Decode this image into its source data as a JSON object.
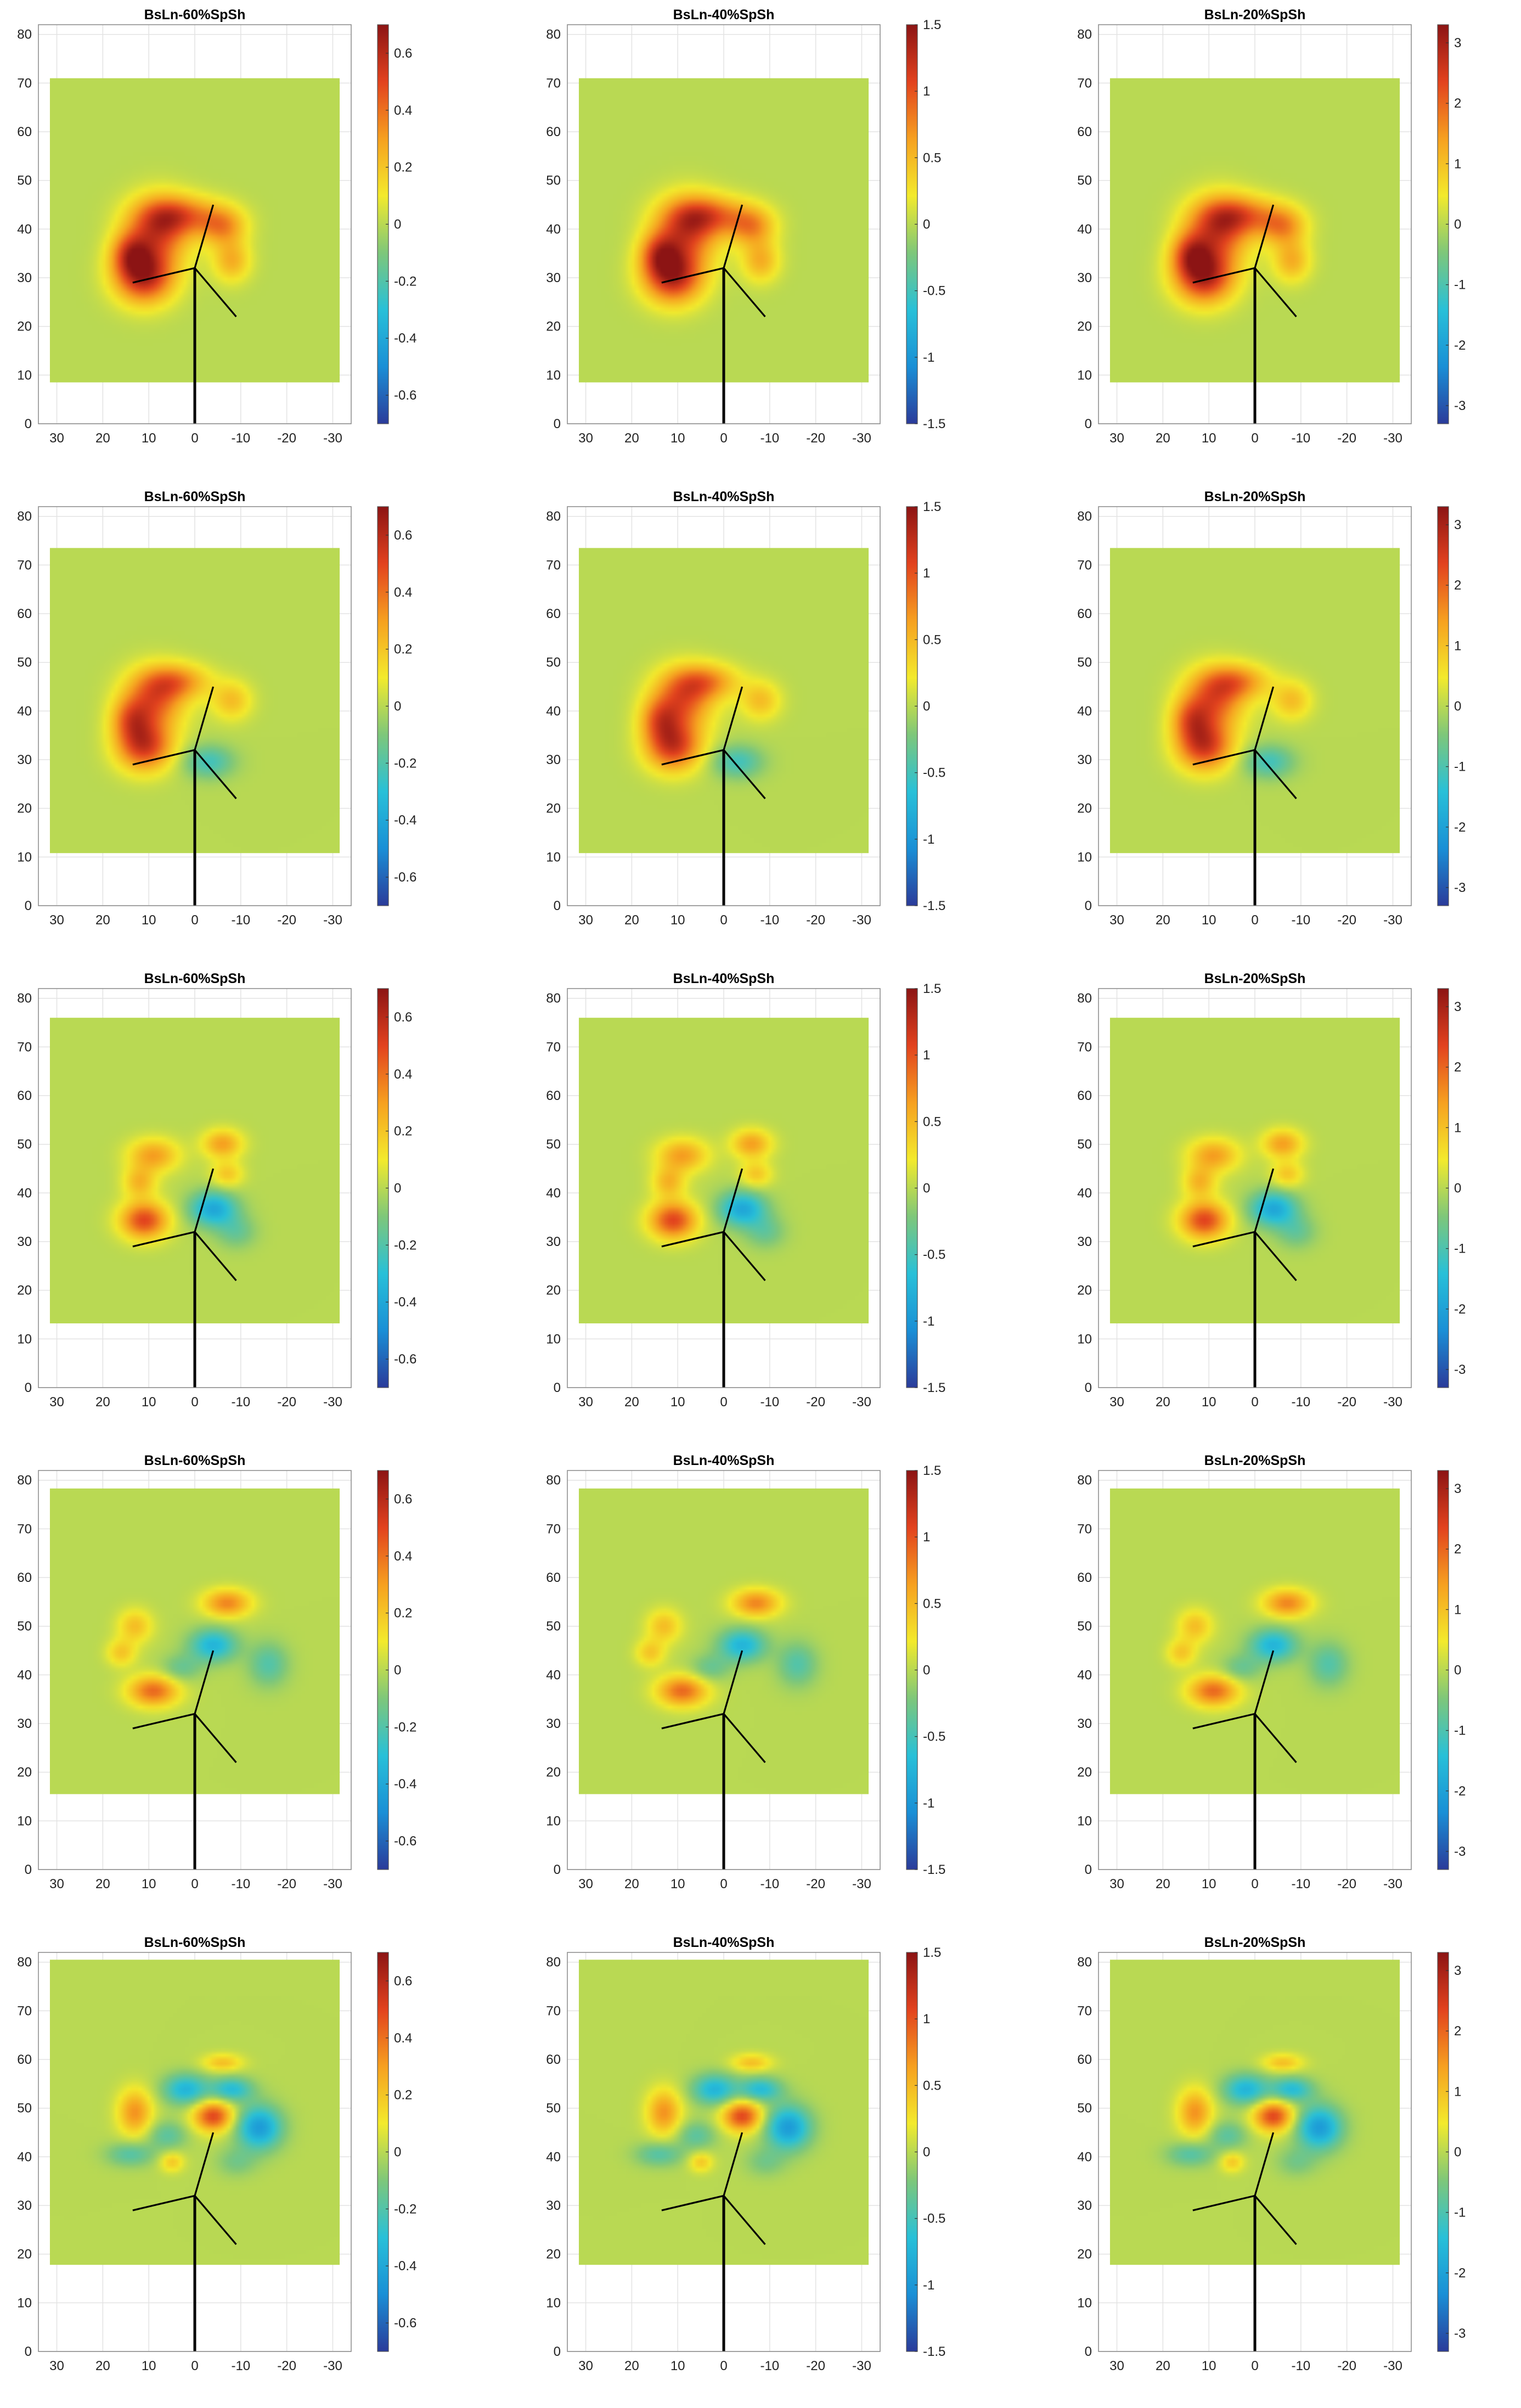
{
  "figure": {
    "rows": 5,
    "cols": 3,
    "colormap": [
      "#2b3b9a",
      "#1a8fd6",
      "#28c0d8",
      "#7ec77a",
      "#f3ea2c",
      "#f6a020",
      "#e2421e",
      "#8c1414"
    ],
    "field_color": "#7dc67a",
    "turbine_color": "#000000"
  },
  "columns": [
    {
      "title": "BsLn-60%SpSh",
      "clim": [
        -0.7,
        0.7
      ],
      "cbar_ticks": [
        "0.6",
        "0.4",
        "0.2",
        "0",
        "-0.2",
        "-0.4",
        "-0.6"
      ],
      "cbar_values": [
        0.6,
        0.4,
        0.2,
        0,
        -0.2,
        -0.4,
        -0.6
      ]
    },
    {
      "title": "BsLn-40%SpSh",
      "clim": [
        -1.5,
        1.5
      ],
      "cbar_ticks": [
        "1.5",
        "1",
        "0.5",
        "0",
        "-0.5",
        "-1",
        "-1.5"
      ],
      "cbar_values": [
        1.5,
        1,
        0.5,
        0,
        -0.5,
        -1,
        -1.5
      ]
    },
    {
      "title": "BsLn-20%SpSh",
      "clim": [
        -3.3,
        3.3
      ],
      "cbar_ticks": [
        "3",
        "2",
        "1",
        "0",
        "-1",
        "-2",
        "-3"
      ],
      "cbar_values": [
        3,
        2,
        1,
        0,
        -1,
        -2,
        -3
      ]
    }
  ],
  "axes": {
    "x_ticks": [
      "30",
      "20",
      "10",
      "0",
      "-10",
      "-20",
      "-30"
    ],
    "x_values": [
      30,
      20,
      10,
      0,
      -10,
      -20,
      -30
    ],
    "y_ticks": [
      "0",
      "10",
      "20",
      "30",
      "40",
      "50",
      "60",
      "70",
      "80"
    ],
    "y_values": [
      0,
      10,
      20,
      30,
      40,
      50,
      60,
      70,
      80
    ],
    "xlim": [
      34,
      -34
    ],
    "ylim": [
      0,
      82
    ],
    "grid": true
  },
  "chart_data": {
    "type": "heatmap",
    "layout": "5 rows x 3 columns",
    "row_field_extent": [
      {
        "x": [
          31.5,
          -31.5
        ],
        "y": [
          8.5,
          71.0
        ]
      },
      {
        "x": [
          31.5,
          -31.5
        ],
        "y": [
          10.8,
          73.5
        ]
      },
      {
        "x": [
          31.5,
          -31.5
        ],
        "y": [
          13.2,
          76.0
        ]
      },
      {
        "x": [
          31.5,
          -31.5
        ],
        "y": [
          15.5,
          78.3
        ]
      },
      {
        "x": [
          31.5,
          -31.5
        ],
        "y": [
          17.8,
          80.5
        ]
      }
    ],
    "turbine": {
      "tower": [
        [
          0,
          0
        ],
        [
          0,
          32
        ]
      ],
      "hub": [
        0,
        32
      ],
      "blade_tips": [
        [
          13.5,
          29
        ],
        [
          -4,
          45
        ],
        [
          -9,
          22
        ]
      ]
    },
    "rows": [
      {
        "blobs": [
          {
            "x": 8,
            "y": 40,
            "sx": 4.8,
            "sy": 6.0,
            "a": 0.45
          },
          {
            "x": 11,
            "y": 28,
            "sx": 4.5,
            "sy": 5.0,
            "a": 0.6
          },
          {
            "x": 3,
            "y": 44,
            "sx": 6.0,
            "sy": 3.5,
            "a": 0.35
          },
          {
            "x": -6,
            "y": 41,
            "sx": 3.5,
            "sy": 3.5,
            "a": 0.32
          },
          {
            "x": -8,
            "y": 32,
            "sx": 2.8,
            "sy": 3.8,
            "a": 0.26
          },
          {
            "x": 14,
            "y": 34,
            "sx": 3.0,
            "sy": 4.0,
            "a": 0.35
          }
        ]
      },
      {
        "blobs": [
          {
            "x": 9,
            "y": 40,
            "sx": 4.6,
            "sy": 5.5,
            "a": 0.42
          },
          {
            "x": 11,
            "y": 28,
            "sx": 4.2,
            "sy": 4.5,
            "a": 0.52
          },
          {
            "x": 4,
            "y": 45,
            "sx": 5.0,
            "sy": 3.2,
            "a": 0.32
          },
          {
            "x": -8,
            "y": 40,
            "sx": 3.0,
            "sy": 3.5,
            "a": 0.22
          },
          {
            "x": -3,
            "y": 24,
            "sx": 3.8,
            "sy": 3.0,
            "a": -0.24
          },
          {
            "x": 14,
            "y": 35,
            "sx": 3.0,
            "sy": 4.0,
            "a": 0.3
          }
        ]
      },
      {
        "blobs": [
          {
            "x": 9,
            "y": 44,
            "sx": 3.8,
            "sy": 3.0,
            "a": 0.3
          },
          {
            "x": 12,
            "y": 37,
            "sx": 2.5,
            "sy": 2.8,
            "a": 0.24
          },
          {
            "x": 11,
            "y": 27,
            "sx": 3.6,
            "sy": 3.4,
            "a": 0.5
          },
          {
            "x": -6,
            "y": 47,
            "sx": 3.0,
            "sy": 2.6,
            "a": 0.3
          },
          {
            "x": -7,
            "y": 39,
            "sx": 2.4,
            "sy": 2.4,
            "a": 0.2
          },
          {
            "x": -4,
            "y": 30,
            "sx": 3.6,
            "sy": 3.2,
            "a": -0.4
          },
          {
            "x": -9,
            "y": 24,
            "sx": 3.0,
            "sy": 3.0,
            "a": -0.15
          }
        ]
      },
      {
        "blobs": [
          {
            "x": 13,
            "y": 44,
            "sx": 2.6,
            "sy": 3.0,
            "a": 0.22
          },
          {
            "x": 16,
            "y": 37,
            "sx": 2.2,
            "sy": 2.4,
            "a": 0.2
          },
          {
            "x": 9,
            "y": 27,
            "sx": 3.8,
            "sy": 2.8,
            "a": 0.42
          },
          {
            "x": -7,
            "y": 50,
            "sx": 3.6,
            "sy": 2.5,
            "a": 0.36
          },
          {
            "x": -4,
            "y": 39,
            "sx": 3.6,
            "sy": 3.0,
            "a": -0.35
          },
          {
            "x": -16,
            "y": 34,
            "sx": 3.0,
            "sy": 4.0,
            "a": -0.2
          },
          {
            "x": 3,
            "y": 33,
            "sx": 3.0,
            "sy": 2.5,
            "a": -0.15
          }
        ]
      },
      {
        "blobs": [
          {
            "x": 13,
            "y": 40,
            "sx": 2.6,
            "sy": 4.2,
            "a": 0.33
          },
          {
            "x": -4,
            "y": 39,
            "sx": 3.0,
            "sy": 2.8,
            "a": 0.5
          },
          {
            "x": -14,
            "y": 36,
            "sx": 3.4,
            "sy": 4.0,
            "a": -0.45
          },
          {
            "x": 2,
            "y": 46,
            "sx": 3.4,
            "sy": 2.8,
            "a": -0.35
          },
          {
            "x": -8,
            "y": 46,
            "sx": 3.2,
            "sy": 2.2,
            "a": -0.32
          },
          {
            "x": -6,
            "y": 53,
            "sx": 3.0,
            "sy": 1.6,
            "a": 0.22
          },
          {
            "x": 14,
            "y": 29,
            "sx": 3.6,
            "sy": 2.2,
            "a": -0.2
          },
          {
            "x": 6,
            "y": 34,
            "sx": 3.0,
            "sy": 2.6,
            "a": -0.18
          },
          {
            "x": 5,
            "y": 27,
            "sx": 1.8,
            "sy": 1.8,
            "a": 0.2
          },
          {
            "x": -9,
            "y": 27,
            "sx": 3.0,
            "sy": 2.6,
            "a": -0.12
          }
        ]
      }
    ]
  }
}
